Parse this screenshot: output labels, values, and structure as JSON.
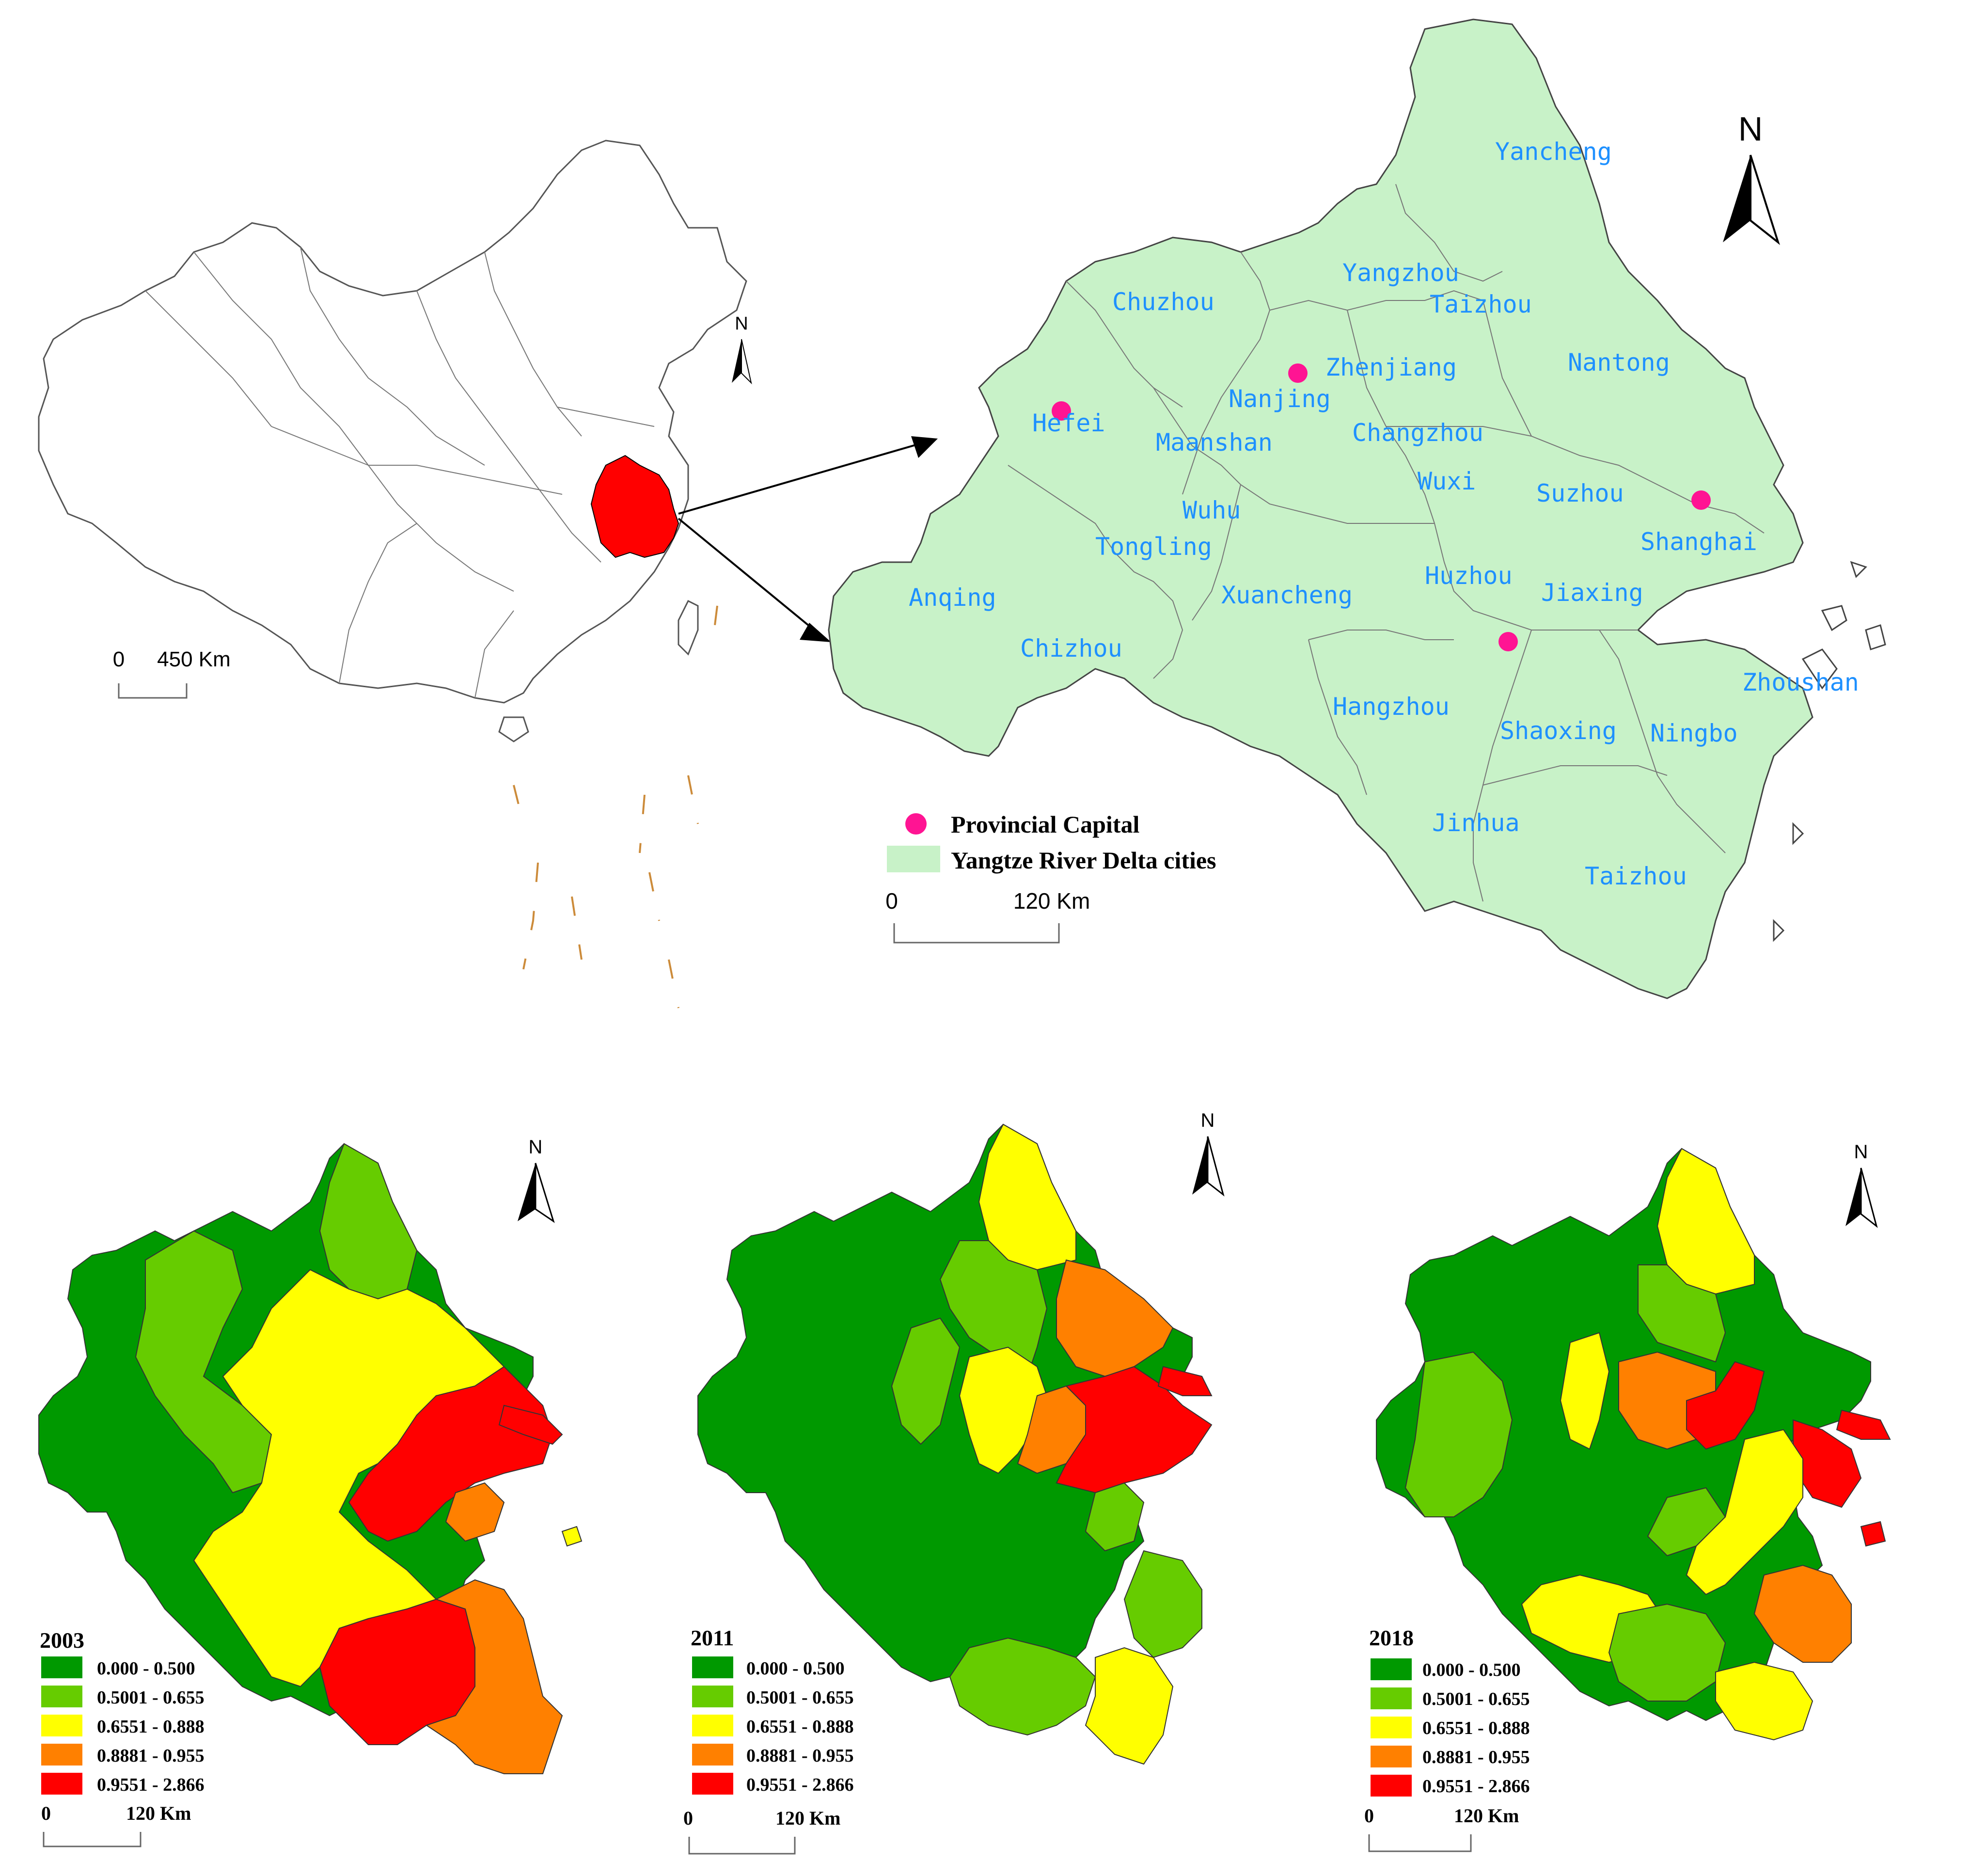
{
  "overview_map": {
    "scale_start": "0",
    "scale_end": "450 Km",
    "north_label": "N"
  },
  "delta_map": {
    "north_label": "N",
    "scale_start": "0",
    "scale_end": "120 Km",
    "legend": {
      "capital_label": "Provincial Capital",
      "capital_color": "#ff1493",
      "area_label": "Yangtze River Delta cities",
      "area_color": "#c8f2c8"
    },
    "cities": [
      "Yancheng",
      "Yangzhou",
      "Taizhou",
      "Chuzhou",
      "Nantong",
      "Zhenjiang",
      "Nanjing",
      "Hefei",
      "Maanshan",
      "Changzhou",
      "Wuxi",
      "Suzhou",
      "Shanghai",
      "Wuhu",
      "Tongling",
      "Anqing",
      "Xuancheng",
      "Huzhou",
      "Jiaxing",
      "Chizhou",
      "Zhoushan",
      "Hangzhou",
      "Shaoxing",
      "Ningbo",
      "Jinhua",
      "Taizhou"
    ]
  },
  "class_legend": {
    "classes": [
      {
        "label": "0.000 - 0.500",
        "color": "#009900"
      },
      {
        "label": "0.5001 - 0.655",
        "color": "#66cc00"
      },
      {
        "label": "0.6551 - 0.888",
        "color": "#ffff00"
      },
      {
        "label": "0.8881 - 0.955",
        "color": "#ff8000"
      },
      {
        "label": "0.9551 - 2.866",
        "color": "#ff0000"
      }
    ]
  },
  "year_maps": [
    {
      "year": "2003",
      "north_label": "N",
      "scale_start": "0",
      "scale_end": "120 Km"
    },
    {
      "year": "2011",
      "north_label": "N",
      "scale_start": "0",
      "scale_end": "120 Km"
    },
    {
      "year": "2018",
      "north_label": "N",
      "scale_start": "0",
      "scale_end": "120 Km"
    }
  ]
}
